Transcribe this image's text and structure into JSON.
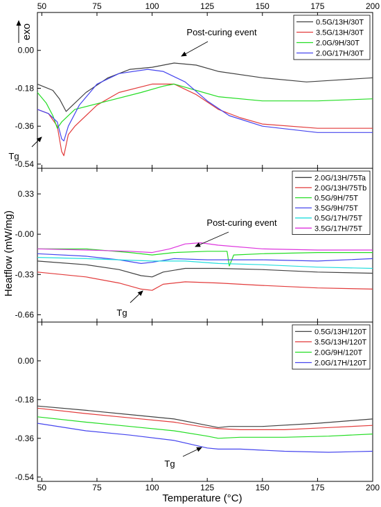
{
  "chart_data": {
    "type": "line",
    "xlabel": "Temperature (°C)",
    "ylabel": "Heatflow (mW/mg)",
    "xlim": [
      48,
      200
    ],
    "xticks": [
      50,
      75,
      100,
      125,
      150,
      175,
      200
    ],
    "exo_label": "exo",
    "panels": [
      {
        "ylim": [
          -0.56,
          0.18
        ],
        "yticks": [
          "0.00",
          "-0.18",
          "-0.36",
          "-0.54"
        ],
        "ytick_values": [
          0.0,
          -0.18,
          -0.36,
          -0.54
        ],
        "legend_position": "top-right",
        "series": [
          {
            "name": "0.5G/13H/30T",
            "color": "#404040",
            "points": [
              [
                48,
                -0.16
              ],
              [
                55,
                -0.19
              ],
              [
                58,
                -0.23
              ],
              [
                61,
                -0.29
              ],
              [
                63,
                -0.27
              ],
              [
                70,
                -0.2
              ],
              [
                80,
                -0.13
              ],
              [
                90,
                -0.09
              ],
              [
                100,
                -0.08
              ],
              [
                110,
                -0.06
              ],
              [
                120,
                -0.07
              ],
              [
                130,
                -0.1
              ],
              [
                150,
                -0.13
              ],
              [
                170,
                -0.15
              ],
              [
                185,
                -0.14
              ],
              [
                200,
                -0.13
              ]
            ]
          },
          {
            "name": "3.5G/13H/30T",
            "color": "#e23a3a",
            "points": [
              [
                48,
                -0.28
              ],
              [
                53,
                -0.3
              ],
              [
                57,
                -0.36
              ],
              [
                59,
                -0.48
              ],
              [
                60,
                -0.5
              ],
              [
                62,
                -0.4
              ],
              [
                65,
                -0.36
              ],
              [
                75,
                -0.26
              ],
              [
                85,
                -0.2
              ],
              [
                100,
                -0.16
              ],
              [
                110,
                -0.16
              ],
              [
                120,
                -0.21
              ],
              [
                130,
                -0.28
              ],
              [
                140,
                -0.32
              ],
              [
                150,
                -0.35
              ],
              [
                175,
                -0.37
              ],
              [
                200,
                -0.37
              ]
            ]
          },
          {
            "name": "2.0G/9H/30T",
            "color": "#22dd22",
            "points": [
              [
                48,
                -0.2
              ],
              [
                52,
                -0.25
              ],
              [
                55,
                -0.31
              ],
              [
                57,
                -0.37
              ],
              [
                59,
                -0.34
              ],
              [
                65,
                -0.28
              ],
              [
                80,
                -0.24
              ],
              [
                95,
                -0.2
              ],
              [
                105,
                -0.17
              ],
              [
                110,
                -0.16
              ],
              [
                120,
                -0.19
              ],
              [
                130,
                -0.22
              ],
              [
                150,
                -0.24
              ],
              [
                175,
                -0.24
              ],
              [
                200,
                -0.23
              ]
            ]
          },
          {
            "name": "2.0G/17H/30T",
            "color": "#4444ee",
            "points": [
              [
                48,
                -0.28
              ],
              [
                53,
                -0.3
              ],
              [
                57,
                -0.34
              ],
              [
                59,
                -0.42
              ],
              [
                60,
                -0.43
              ],
              [
                62,
                -0.36
              ],
              [
                67,
                -0.26
              ],
              [
                75,
                -0.16
              ],
              [
                85,
                -0.11
              ],
              [
                98,
                -0.09
              ],
              [
                105,
                -0.1
              ],
              [
                115,
                -0.15
              ],
              [
                125,
                -0.24
              ],
              [
                135,
                -0.31
              ],
              [
                150,
                -0.36
              ],
              [
                175,
                -0.39
              ],
              [
                200,
                -0.39
              ]
            ]
          }
        ],
        "annotations": [
          {
            "text": "Post-curing event",
            "x": 112,
            "y": -0.03
          },
          {
            "text": "Tg",
            "x": 55,
            "y": -0.5
          }
        ]
      },
      {
        "ylim": [
          -0.72,
          0.54
        ],
        "yticks": [
          "0.33",
          "-0.00",
          "-0.33",
          "-0.66"
        ],
        "ytick_values": [
          0.33,
          0.0,
          -0.33,
          -0.66
        ],
        "legend_position": "top-right",
        "series": [
          {
            "name": "2.0G/13H/75Ta",
            "color": "#404040",
            "points": [
              [
                48,
                -0.22
              ],
              [
                70,
                -0.25
              ],
              [
                85,
                -0.29
              ],
              [
                95,
                -0.34
              ],
              [
                100,
                -0.35
              ],
              [
                105,
                -0.31
              ],
              [
                115,
                -0.28
              ],
              [
                130,
                -0.28
              ],
              [
                150,
                -0.29
              ],
              [
                175,
                -0.31
              ],
              [
                200,
                -0.32
              ]
            ]
          },
          {
            "name": "2.0G/13H/75Tb",
            "color": "#e23a3a",
            "points": [
              [
                48,
                -0.31
              ],
              [
                70,
                -0.35
              ],
              [
                85,
                -0.4
              ],
              [
                95,
                -0.45
              ],
              [
                100,
                -0.46
              ],
              [
                105,
                -0.41
              ],
              [
                115,
                -0.39
              ],
              [
                130,
                -0.4
              ],
              [
                150,
                -0.42
              ],
              [
                175,
                -0.44
              ],
              [
                200,
                -0.45
              ]
            ]
          },
          {
            "name": "0.5G/9H/75T",
            "color": "#22dd22",
            "points": [
              [
                48,
                -0.12
              ],
              [
                70,
                -0.12
              ],
              [
                90,
                -0.15
              ],
              [
                100,
                -0.17
              ],
              [
                110,
                -0.15
              ],
              [
                125,
                -0.14
              ],
              [
                134,
                -0.14
              ],
              [
                135,
                -0.26
              ],
              [
                137,
                -0.17
              ],
              [
                150,
                -0.16
              ],
              [
                175,
                -0.15
              ],
              [
                200,
                -0.15
              ]
            ]
          },
          {
            "name": "3.5G/9H/75T",
            "color": "#4444ee",
            "points": [
              [
                48,
                -0.16
              ],
              [
                70,
                -0.18
              ],
              [
                85,
                -0.21
              ],
              [
                95,
                -0.24
              ],
              [
                100,
                -0.23
              ],
              [
                110,
                -0.2
              ],
              [
                125,
                -0.21
              ],
              [
                150,
                -0.21
              ],
              [
                175,
                -0.22
              ],
              [
                200,
                -0.2
              ]
            ]
          },
          {
            "name": "0.5G/17H/75T",
            "color": "#22dddd",
            "points": [
              [
                48,
                -0.19
              ],
              [
                70,
                -0.2
              ],
              [
                85,
                -0.21
              ],
              [
                100,
                -0.22
              ],
              [
                115,
                -0.22
              ],
              [
                130,
                -0.24
              ],
              [
                150,
                -0.25
              ],
              [
                175,
                -0.27
              ],
              [
                200,
                -0.28
              ]
            ]
          },
          {
            "name": "3.5G/17H/75T",
            "color": "#dd33dd",
            "points": [
              [
                48,
                -0.12
              ],
              [
                70,
                -0.13
              ],
              [
                90,
                -0.14
              ],
              [
                100,
                -0.15
              ],
              [
                108,
                -0.12
              ],
              [
                115,
                -0.08
              ],
              [
                122,
                -0.07
              ],
              [
                130,
                -0.09
              ],
              [
                150,
                -0.12
              ],
              [
                175,
                -0.13
              ],
              [
                200,
                -0.13
              ]
            ]
          }
        ],
        "annotations": [
          {
            "text": "Post-curing event",
            "x": 138,
            "y": 0.1
          },
          {
            "text": "Tg",
            "x": 86,
            "y": -0.56
          }
        ]
      },
      {
        "ylim": [
          -0.56,
          0.18
        ],
        "yticks": [
          "0.00",
          "-0.18",
          "-0.36",
          "-0.54"
        ],
        "ytick_values": [
          0.0,
          -0.18,
          -0.36,
          -0.54
        ],
        "legend_position": "top-right",
        "series": [
          {
            "name": "0.5G/13H/120T",
            "color": "#404040",
            "points": [
              [
                48,
                -0.21
              ],
              [
                70,
                -0.23
              ],
              [
                90,
                -0.25
              ],
              [
                110,
                -0.27
              ],
              [
                125,
                -0.3
              ],
              [
                130,
                -0.31
              ],
              [
                135,
                -0.305
              ],
              [
                150,
                -0.305
              ],
              [
                175,
                -0.29
              ],
              [
                200,
                -0.27
              ]
            ]
          },
          {
            "name": "3.5G/13H/120T",
            "color": "#e23a3a",
            "points": [
              [
                48,
                -0.22
              ],
              [
                70,
                -0.245
              ],
              [
                90,
                -0.265
              ],
              [
                110,
                -0.285
              ],
              [
                125,
                -0.31
              ],
              [
                130,
                -0.315
              ],
              [
                140,
                -0.32
              ],
              [
                160,
                -0.32
              ],
              [
                180,
                -0.31
              ],
              [
                200,
                -0.3
              ]
            ]
          },
          {
            "name": "2.0G/9H/120T",
            "color": "#22dd22",
            "points": [
              [
                48,
                -0.26
              ],
              [
                70,
                -0.285
              ],
              [
                90,
                -0.305
              ],
              [
                110,
                -0.325
              ],
              [
                125,
                -0.35
              ],
              [
                130,
                -0.36
              ],
              [
                140,
                -0.355
              ],
              [
                160,
                -0.355
              ],
              [
                180,
                -0.35
              ],
              [
                200,
                -0.34
              ]
            ]
          },
          {
            "name": "2.0G/17H/120T",
            "color": "#4444ee",
            "points": [
              [
                48,
                -0.29
              ],
              [
                70,
                -0.325
              ],
              [
                90,
                -0.345
              ],
              [
                110,
                -0.37
              ],
              [
                125,
                -0.405
              ],
              [
                130,
                -0.41
              ],
              [
                140,
                -0.41
              ],
              [
                160,
                -0.42
              ],
              [
                180,
                -0.425
              ],
              [
                200,
                -0.42
              ]
            ]
          }
        ],
        "annotations": [
          {
            "text": "Tg",
            "x": 110,
            "y": -0.5
          }
        ]
      }
    ]
  }
}
